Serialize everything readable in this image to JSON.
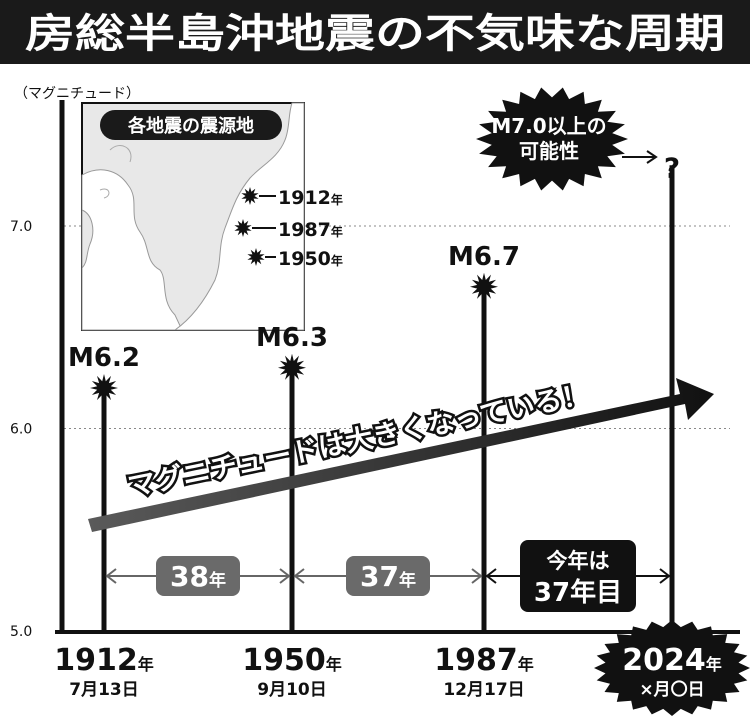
{
  "title": "房総半島沖地震の不気味な周期",
  "chart_data": {
    "type": "bar",
    "ylabel": "（マグニチュード）",
    "ylim": [
      5.0,
      7.5
    ],
    "y_ticks": [
      "5.0",
      "6.0",
      "7.0"
    ],
    "y_tick_values": [
      5.0,
      6.0,
      7.0
    ],
    "grid": "dotted horizontal",
    "events": [
      {
        "year": "1912",
        "year_unit": "年",
        "date": "7月13日",
        "magnitude": 6.2,
        "label": "M6.2"
      },
      {
        "year": "1950",
        "year_unit": "年",
        "date": "9月10日",
        "magnitude": 6.3,
        "label": "M6.3"
      },
      {
        "year": "1987",
        "year_unit": "年",
        "date": "12月17日",
        "magnitude": 6.7,
        "label": "M6.7"
      },
      {
        "year": "2024",
        "year_unit": "年",
        "date": "×月〇日",
        "magnitude": 7.3,
        "label": "?"
      }
    ],
    "trend_text": "マグニチュードは大きくなっている！",
    "intervals": [
      {
        "number": "38",
        "unit": "年"
      },
      {
        "number": "37",
        "unit": "年"
      }
    ],
    "current_interval": {
      "line1": "今年は",
      "line2": "37年目"
    },
    "prediction_bubble": {
      "line1": "M7.0以上の",
      "line2": "可能性"
    }
  },
  "map": {
    "title": "各地震の震源地",
    "markers": [
      {
        "year": "1912",
        "unit": "年"
      },
      {
        "year": "1987",
        "unit": "年"
      },
      {
        "year": "1950",
        "unit": "年"
      }
    ]
  },
  "colors": {
    "title_bg": "#1a1a1a",
    "title_fg": "#ffffff",
    "line": "#111111",
    "interval_badge": "#6a6a6a",
    "map_land": "#e8e8e8",
    "map_bg": "#ffffff"
  }
}
